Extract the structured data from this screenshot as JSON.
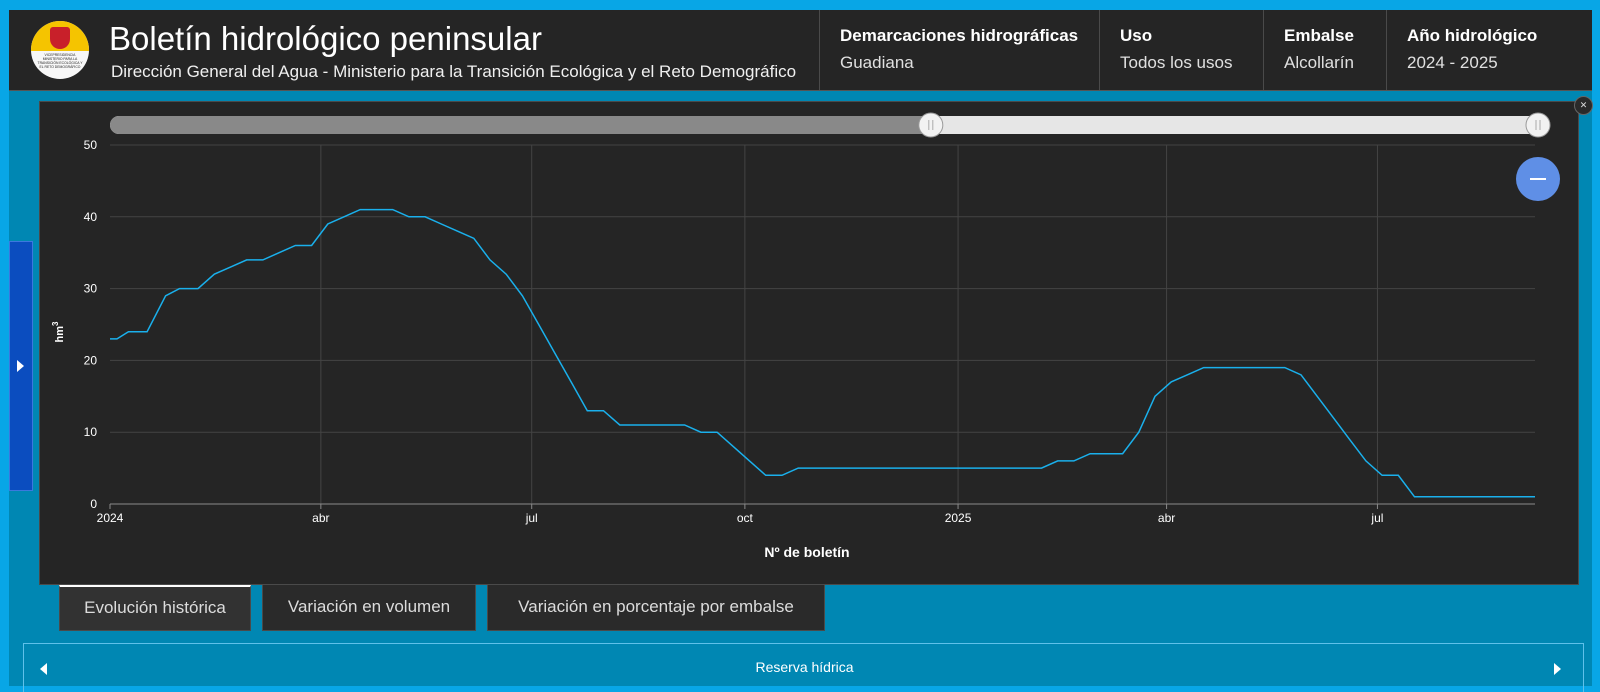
{
  "header": {
    "title": "Boletín hidrológico peninsular",
    "subtitle": "Dirección General del Agua - Ministerio para la Transición Ecológica y el Reto Demográfico",
    "logo_text": "Vicepresidencia Ministerio para la Transición Ecológica y el Reto Demográfico",
    "filters": [
      {
        "label": "Demarcaciones hidrográficas",
        "value": "Guadiana"
      },
      {
        "label": "Uso",
        "value": "Todos los usos"
      },
      {
        "label": "Embalse",
        "value": "Alcollarín"
      },
      {
        "label": "Año hidrológico",
        "value": "2024 - 2025"
      }
    ]
  },
  "controls": {
    "collapse_icon": "collapse-arrows-icon",
    "zoom_out_icon": "minus-icon",
    "range_slider": {
      "start": 0.0,
      "end": 0.57,
      "handle_icon": "pause-bars-icon"
    }
  },
  "chart_data": {
    "type": "line",
    "title": "",
    "xlabel": "Nº de boletín",
    "ylabel": "hm3",
    "ylim": [
      0,
      50
    ],
    "yticks": [
      0,
      10,
      20,
      30,
      40,
      50
    ],
    "xlim": [
      "2024-01-01",
      "2025-09-07"
    ],
    "xticks": [
      {
        "date": "2024-01-01",
        "label": "2024"
      },
      {
        "date": "2024-04-01",
        "label": "abr"
      },
      {
        "date": "2024-07-01",
        "label": "jul"
      },
      {
        "date": "2024-10-01",
        "label": "oct"
      },
      {
        "date": "2025-01-01",
        "label": "2025"
      },
      {
        "date": "2025-04-01",
        "label": "abr"
      },
      {
        "date": "2025-07-01",
        "label": "jul"
      }
    ],
    "grid": true,
    "line_color": "#1ab0ec",
    "series": [
      {
        "points": [
          [
            "2024-01-01",
            23
          ],
          [
            "2024-01-04",
            23
          ],
          [
            "2024-01-09",
            24
          ],
          [
            "2024-01-17",
            24
          ],
          [
            "2024-01-25",
            29
          ],
          [
            "2024-01-31",
            30
          ],
          [
            "2024-02-08",
            30
          ],
          [
            "2024-02-15",
            32
          ],
          [
            "2024-02-22",
            33
          ],
          [
            "2024-02-29",
            34
          ],
          [
            "2024-03-07",
            34
          ],
          [
            "2024-03-14",
            35
          ],
          [
            "2024-03-21",
            36
          ],
          [
            "2024-03-28",
            36
          ],
          [
            "2024-04-04",
            39
          ],
          [
            "2024-04-11",
            40
          ],
          [
            "2024-04-18",
            41
          ],
          [
            "2024-04-25",
            41
          ],
          [
            "2024-05-02",
            41
          ],
          [
            "2024-05-09",
            40
          ],
          [
            "2024-05-16",
            40
          ],
          [
            "2024-05-23",
            39
          ],
          [
            "2024-05-30",
            38
          ],
          [
            "2024-06-06",
            37
          ],
          [
            "2024-06-13",
            34
          ],
          [
            "2024-06-20",
            32
          ],
          [
            "2024-06-27",
            29
          ],
          [
            "2024-07-04",
            25
          ],
          [
            "2024-07-11",
            21
          ],
          [
            "2024-07-18",
            17
          ],
          [
            "2024-07-25",
            13
          ],
          [
            "2024-08-01",
            13
          ],
          [
            "2024-08-08",
            11
          ],
          [
            "2024-08-15",
            11
          ],
          [
            "2024-08-22",
            11
          ],
          [
            "2024-08-29",
            11
          ],
          [
            "2024-09-05",
            11
          ],
          [
            "2024-09-12",
            10
          ],
          [
            "2024-09-19",
            10
          ],
          [
            "2024-09-26",
            8
          ],
          [
            "2024-10-03",
            6
          ],
          [
            "2024-10-10",
            4
          ],
          [
            "2024-10-17",
            4
          ],
          [
            "2024-10-24",
            5
          ],
          [
            "2024-10-31",
            5
          ],
          [
            "2024-11-14",
            5
          ],
          [
            "2024-12-05",
            5
          ],
          [
            "2024-12-26",
            5
          ],
          [
            "2025-01-16",
            5
          ],
          [
            "2025-02-06",
            5
          ],
          [
            "2025-02-13",
            6
          ],
          [
            "2025-02-20",
            6
          ],
          [
            "2025-02-27",
            7
          ],
          [
            "2025-03-06",
            7
          ],
          [
            "2025-03-13",
            7
          ],
          [
            "2025-03-20",
            10
          ],
          [
            "2025-03-27",
            15
          ],
          [
            "2025-04-03",
            17
          ],
          [
            "2025-04-10",
            18
          ],
          [
            "2025-04-17",
            19
          ],
          [
            "2025-04-24",
            19
          ],
          [
            "2025-05-01",
            19
          ],
          [
            "2025-05-08",
            19
          ],
          [
            "2025-05-15",
            19
          ],
          [
            "2025-05-22",
            19
          ],
          [
            "2025-05-29",
            18
          ],
          [
            "2025-06-05",
            15
          ],
          [
            "2025-06-12",
            12
          ],
          [
            "2025-06-19",
            9
          ],
          [
            "2025-06-26",
            6
          ],
          [
            "2025-07-03",
            4
          ],
          [
            "2025-07-10",
            4
          ],
          [
            "2025-07-17",
            1
          ],
          [
            "2025-07-24",
            1
          ],
          [
            "2025-08-07",
            1
          ],
          [
            "2025-08-28",
            1
          ],
          [
            "2025-09-07",
            1
          ]
        ]
      }
    ]
  },
  "side_tab": {
    "arrow_icon": "chevron-right-icon"
  },
  "tabs": [
    {
      "label": "Evolución histórica",
      "active": true
    },
    {
      "label": "Variación en volumen",
      "active": false
    },
    {
      "label": "Variación en porcentaje por embalse",
      "active": false
    }
  ],
  "bottom_bar": {
    "label": "Reserva hídrica",
    "prev_icon": "chevron-left-icon",
    "next_icon": "chevron-right-icon"
  }
}
